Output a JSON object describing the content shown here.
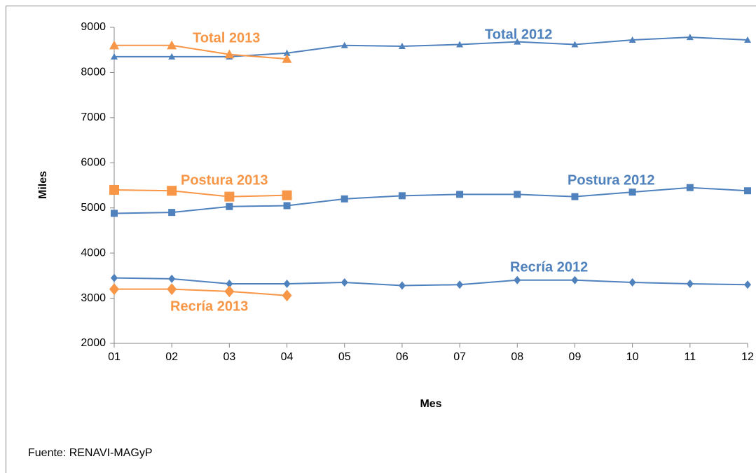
{
  "chart_data": {
    "type": "line",
    "categories": [
      "01",
      "02",
      "03",
      "04",
      "05",
      "06",
      "07",
      "08",
      "09",
      "10",
      "11",
      "12"
    ],
    "series": [
      {
        "name": "Total 2012",
        "color": "#4f81bd",
        "marker": "triangle",
        "values": [
          8350,
          8350,
          8350,
          8430,
          8600,
          8580,
          8620,
          8680,
          8620,
          8720,
          8780,
          8720
        ]
      },
      {
        "name": "Total 2013",
        "color": "#f79646",
        "marker": "triangle",
        "values": [
          8600,
          8600,
          8400,
          8300,
          null,
          null,
          null,
          null,
          null,
          null,
          null,
          null
        ]
      },
      {
        "name": "Postura 2012",
        "color": "#4f81bd",
        "marker": "square",
        "values": [
          4880,
          4900,
          5030,
          5050,
          5200,
          5270,
          5300,
          5300,
          5250,
          5350,
          5450,
          5380
        ]
      },
      {
        "name": "Postura 2013",
        "color": "#f79646",
        "marker": "square",
        "values": [
          5400,
          5380,
          5250,
          5280,
          null,
          null,
          null,
          null,
          null,
          null,
          null,
          null
        ]
      },
      {
        "name": "Recría 2012",
        "color": "#4f81bd",
        "marker": "diamond",
        "values": [
          3450,
          3430,
          3320,
          3320,
          3350,
          3280,
          3300,
          3400,
          3400,
          3350,
          3320,
          3300
        ]
      },
      {
        "name": "Recría 2013",
        "color": "#f79646",
        "marker": "diamond",
        "values": [
          3200,
          3200,
          3150,
          3060,
          null,
          null,
          null,
          null,
          null,
          null,
          null,
          null
        ]
      }
    ],
    "y_label": "Miles",
    "x_label": "Mes",
    "source": "Fuente: RENAVI-MAGyP",
    "ylim": [
      2000,
      9000
    ],
    "yticks": [
      2000,
      3000,
      4000,
      5000,
      6000,
      7000,
      8000,
      9000
    ],
    "grid": false
  }
}
